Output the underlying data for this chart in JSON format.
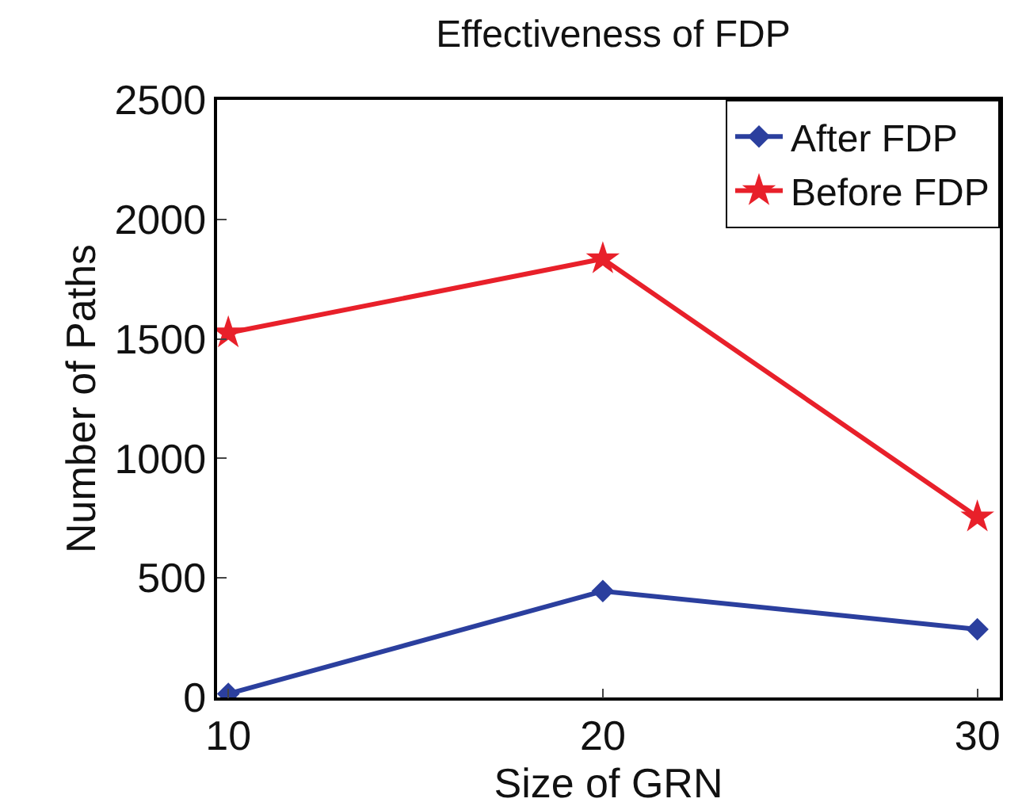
{
  "chart_data": {
    "type": "line",
    "title": "Effectiveness of FDP",
    "xlabel": "Size of GRN",
    "ylabel": "Number of Paths",
    "x": [
      10,
      20,
      30
    ],
    "series": [
      {
        "name": "After FDP",
        "color": "#2b3f9e",
        "marker": "diamond",
        "values": [
          15,
          445,
          285
        ]
      },
      {
        "name": "Before FDP",
        "color": "#e8202a",
        "marker": "star",
        "values": [
          1525,
          1835,
          755
        ]
      }
    ],
    "xlim": [
      9.7,
      30.6
    ],
    "xticks": [
      10,
      20,
      30
    ],
    "ylim": [
      0,
      2500
    ],
    "yticks": [
      0,
      500,
      1000,
      1500,
      2000,
      2500
    ],
    "grid": false,
    "legend": "top right",
    "line_style": "solid"
  }
}
